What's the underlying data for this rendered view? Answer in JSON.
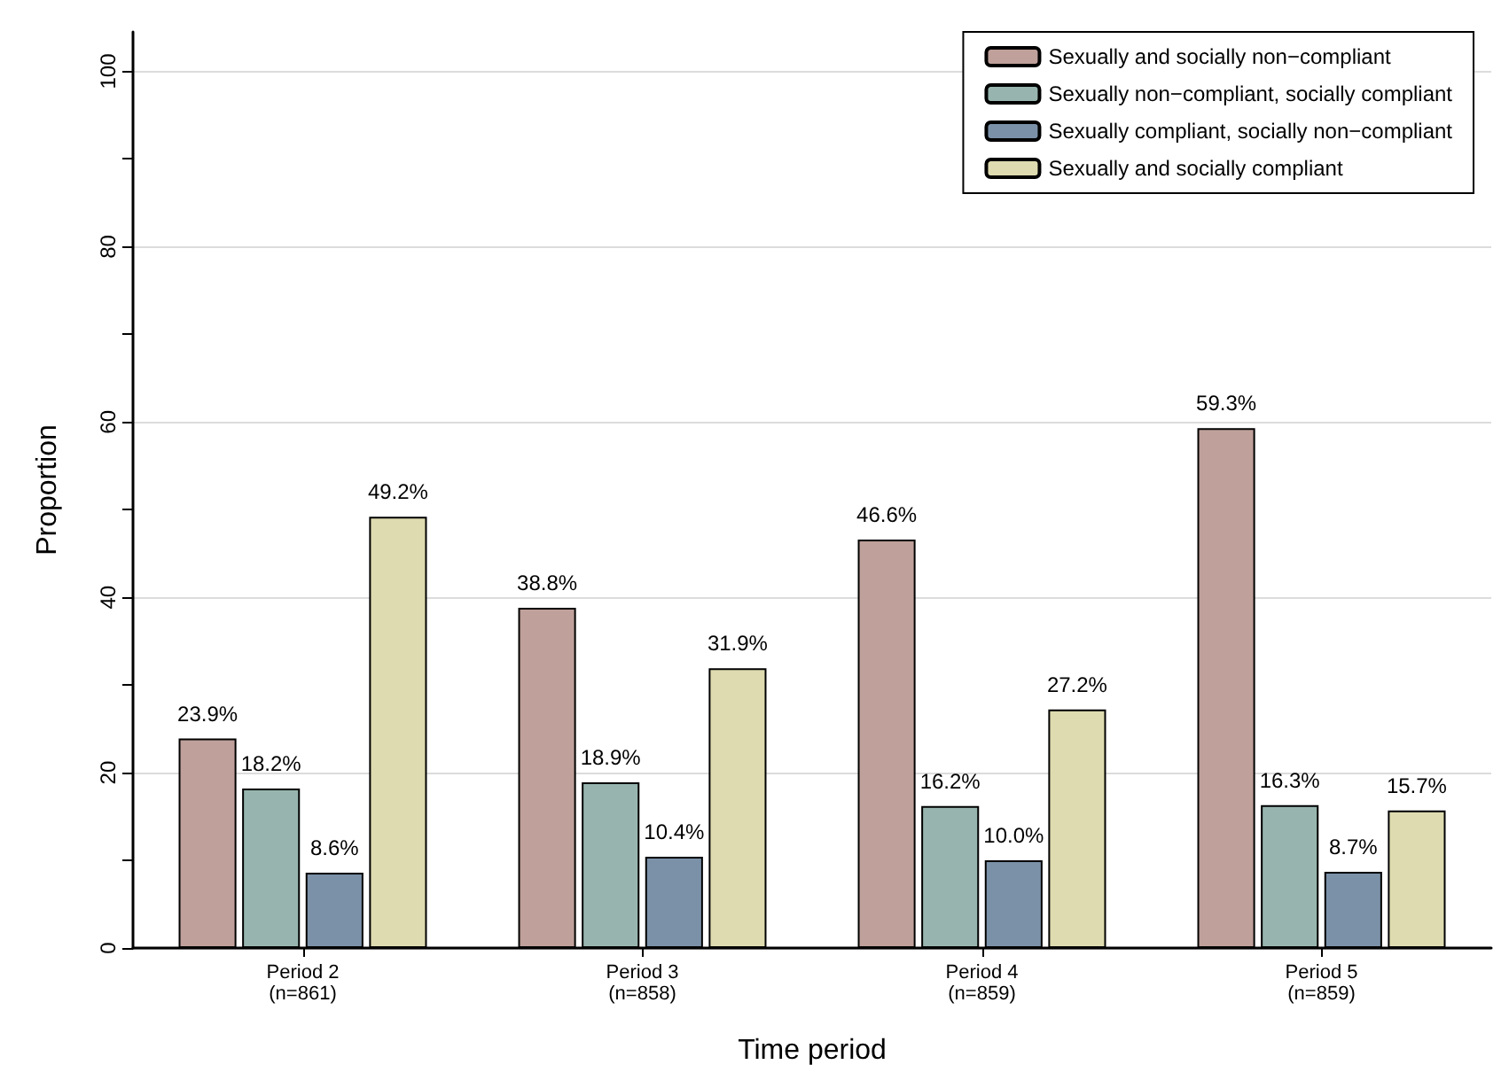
{
  "chart_data": {
    "type": "bar",
    "xlabel": "Time period",
    "ylabel": "Proportion",
    "categories": [
      "Period 2\n(n=861)",
      "Period 3\n(n=858)",
      "Period 4\n(n=859)",
      "Period 5\n(n=859)"
    ],
    "series": [
      {
        "name": "Sexually and socially non−compliant",
        "color": "#bfa09a",
        "values": [
          23.9,
          38.8,
          46.6,
          59.3
        ],
        "value_labels": [
          "23.9%",
          "38.8%",
          "46.6%",
          "59.3%"
        ]
      },
      {
        "name": "Sexually non−compliant, socially compliant",
        "color": "#97b5ae",
        "values": [
          18.2,
          18.9,
          16.2,
          16.3
        ],
        "value_labels": [
          "18.2%",
          "18.9%",
          "16.2%",
          "16.3%"
        ]
      },
      {
        "name": "Sexually compliant, socially non−compliant",
        "color": "#7b91a8",
        "values": [
          8.6,
          10.4,
          10.0,
          8.7
        ],
        "value_labels": [
          "8.6%",
          "10.4%",
          "10.0%",
          "8.7%"
        ]
      },
      {
        "name": "Sexually and socially compliant",
        "color": "#dedbb0",
        "values": [
          49.2,
          31.9,
          27.2,
          15.7
        ],
        "value_labels": [
          "49.2%",
          "31.9%",
          "27.2%",
          "15.7%"
        ]
      }
    ],
    "ylim": [
      0,
      104.5
    ],
    "yticks": [
      0,
      {
        "value": 10,
        "label": null
      },
      20,
      {
        "value": 30,
        "label": null
      },
      40,
      {
        "value": 50,
        "label": null
      },
      60,
      {
        "value": 70,
        "label": null
      },
      80,
      {
        "value": 90,
        "label": null
      },
      100
    ],
    "grid": "y",
    "legend": "top right"
  }
}
